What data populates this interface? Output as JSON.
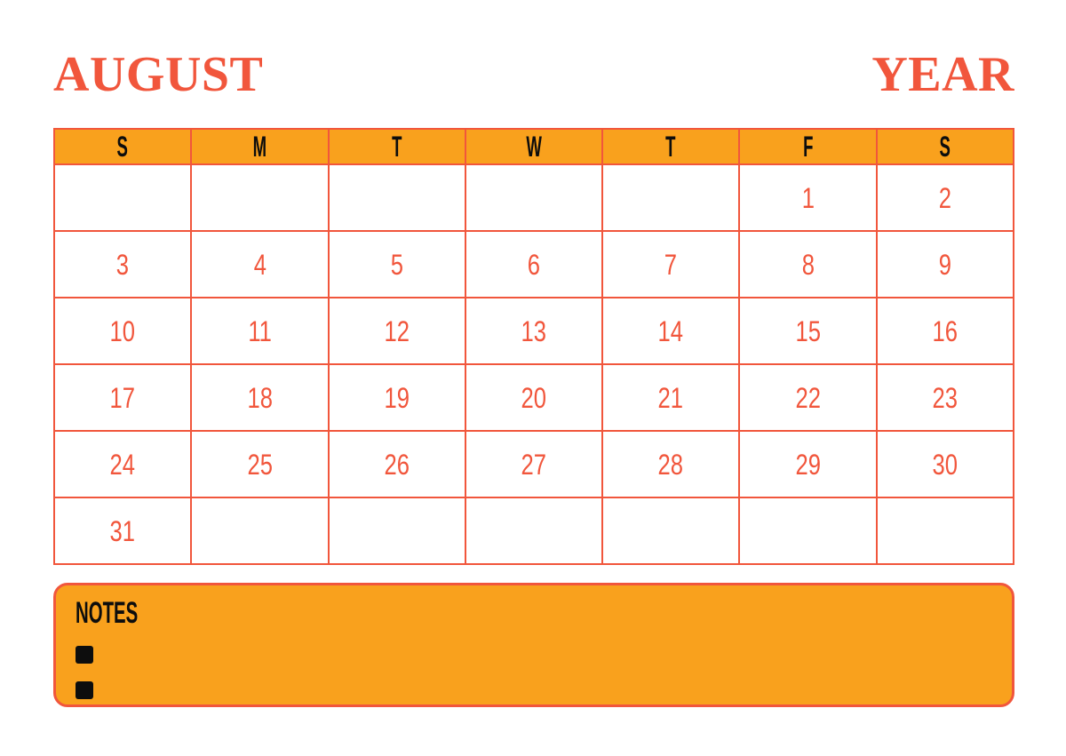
{
  "colors": {
    "accent": "#F1563C",
    "panel_orange": "#F9A11D",
    "ink": "#0D0D0D",
    "page_bg": "#FFFFFF"
  },
  "header": {
    "month": "AUGUST",
    "year": "YEAR"
  },
  "calendar": {
    "day_headers": [
      "S",
      "M",
      "T",
      "W",
      "T",
      "F",
      "S"
    ],
    "weeks": [
      [
        "",
        "",
        "",
        "",
        "",
        "1",
        "2"
      ],
      [
        "3",
        "4",
        "5",
        "6",
        "7",
        "8",
        "9"
      ],
      [
        "10",
        "11",
        "12",
        "13",
        "14",
        "15",
        "16"
      ],
      [
        "17",
        "18",
        "19",
        "20",
        "21",
        "22",
        "23"
      ],
      [
        "24",
        "25",
        "26",
        "27",
        "28",
        "29",
        "30"
      ],
      [
        "31",
        "",
        "",
        "",
        "",
        "",
        ""
      ]
    ]
  },
  "notes": {
    "label": "NOTES",
    "items": [
      "",
      ""
    ]
  }
}
